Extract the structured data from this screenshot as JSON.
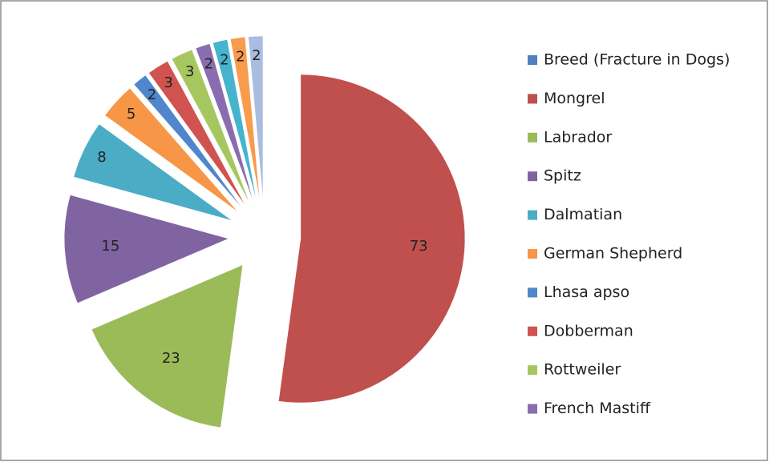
{
  "chart_data": {
    "type": "pie",
    "categories": [
      "Breed (Fracture in Dogs)",
      "Mongrel",
      "Labrador",
      "Spitz",
      "Dalmatian",
      "German Shepherd",
      "Lhasa apso",
      "Dobberman",
      "Rottweiler",
      "French Mastiff",
      null,
      null,
      null
    ],
    "values": [
      null,
      73,
      23,
      15,
      8,
      5,
      2,
      3,
      3,
      2,
      2,
      2,
      2
    ],
    "colors": [
      "#4F81BD",
      "#C0504D",
      "#9BBB59",
      "#8064A2",
      "#4BACC6",
      "#F79646",
      "#4F86CC",
      "#D0534F",
      "#A6C75F",
      "#8A6DB0",
      "#46B3CF",
      "#F99B4C",
      "#A9BDE0"
    ],
    "exploded": true
  }
}
